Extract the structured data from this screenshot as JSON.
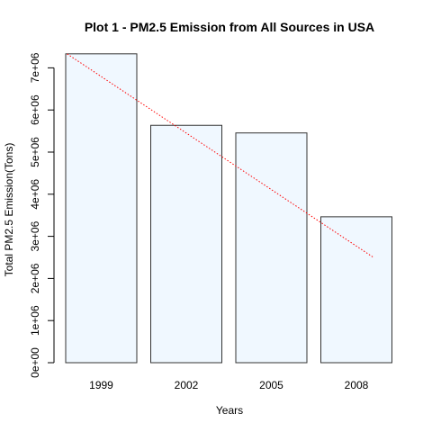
{
  "chart_data": {
    "type": "bar",
    "title": "Plot 1 - PM2.5 Emission from All Sources in USA",
    "xlabel": "Years",
    "ylabel": "Total PM2.5 Emission(Tons)",
    "categories": [
      "1999",
      "2002",
      "2005",
      "2008"
    ],
    "values": [
      7332967,
      5635780,
      5454703,
      3464206
    ],
    "ylim": [
      0,
      7800000
    ],
    "yticks": [
      0,
      1000000,
      2000000,
      3000000,
      4000000,
      5000000,
      6000000,
      7000000
    ],
    "ytick_labels": [
      "0e+00",
      "1e+06",
      "2e+06",
      "3e+06",
      "4e+06",
      "5e+06",
      "6e+06",
      "7e+06"
    ],
    "trend_line": {
      "type": "linear-fit",
      "style": "dotted",
      "color": "#ff0000",
      "x_range": [
        0.6,
        4.2
      ],
      "y_range": [
        7330000,
        2500000
      ]
    },
    "bar_fill": "#f0f8ff",
    "bar_stroke": "#333333"
  }
}
